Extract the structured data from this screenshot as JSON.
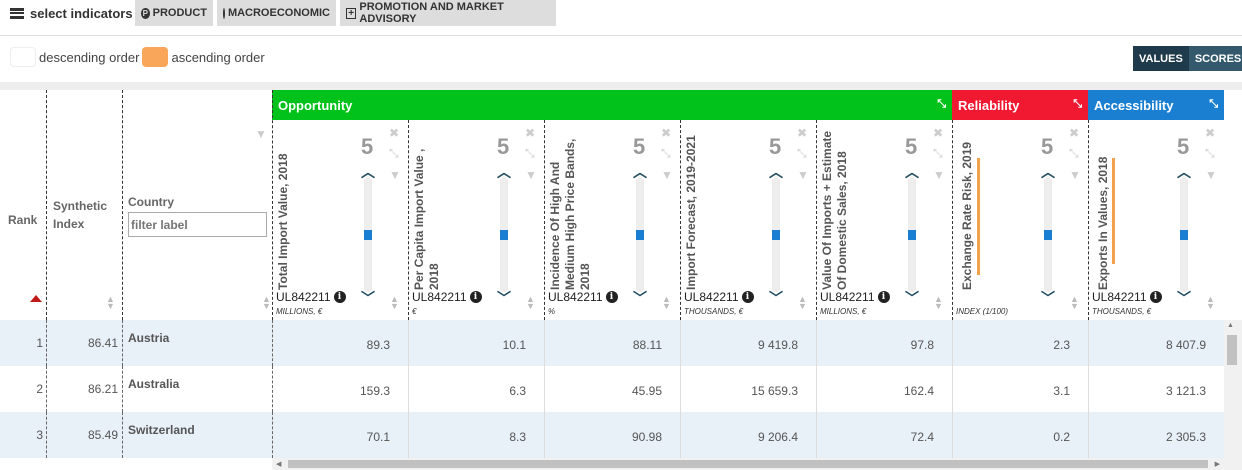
{
  "toolbar": {
    "select_label": "select indicators",
    "tabs": [
      {
        "label": "PRODUCT",
        "icon": "product-icon"
      },
      {
        "label": "MACROECONOMIC",
        "icon": "globe-icon"
      },
      {
        "label": "PROMOTION AND MARKET ADVISORY",
        "icon": "plus-square-icon"
      }
    ]
  },
  "legend": {
    "descending": "descending order",
    "ascending": "ascending order",
    "descending_color": "#ffffff",
    "ascending_color": "#f9a65a"
  },
  "view_toggle": {
    "values": "VALUES",
    "scores": "SCORES"
  },
  "groups": [
    {
      "label": "Opportunity",
      "color": "#00c21b"
    },
    {
      "label": "Reliability",
      "color": "#f01931"
    },
    {
      "label": "Accessibility",
      "color": "#1b7fd1"
    }
  ],
  "fixed_cols": {
    "rank": "Rank",
    "synthetic": "Synthetic Index",
    "country": "Country",
    "filter_placeholder": "filter label"
  },
  "indicators": [
    {
      "title": "Total Import Value, 2018",
      "code": "UL842211",
      "unit": "MILLIONS, €",
      "weight": "5"
    },
    {
      "title": "Per Capita Import Value , 2018",
      "code": "UL842211",
      "unit": "€",
      "weight": "5"
    },
    {
      "title": "Incidence Of High And Medium High Price Bands, 2018",
      "code": "UL842211",
      "unit": "%",
      "weight": "5"
    },
    {
      "title": "Import Forecast, 2019-2021",
      "code": "UL842211",
      "unit": "THOUSANDS, €",
      "weight": "5"
    },
    {
      "title": "Value Of Imports + Estimate Of Domestic Sales, 2018",
      "code": "UL842211",
      "unit": "MILLIONS, €",
      "weight": "5"
    },
    {
      "title": "Exchange Rate Risk, 2019",
      "code": "",
      "unit": "INDEX (1/100)",
      "weight": "5"
    },
    {
      "title": "Exports In Values, 2018",
      "code": "UL842211",
      "unit": "THOUSANDS, €",
      "weight": "5"
    }
  ],
  "rows": [
    {
      "rank": "1",
      "index": "86.41",
      "country": "Austria",
      "vals": [
        "89.3",
        "10.1",
        "88.11",
        "9 419.8",
        "97.8",
        "2.3",
        "8 407.9"
      ]
    },
    {
      "rank": "2",
      "index": "86.21",
      "country": "Australia",
      "vals": [
        "159.3",
        "6.3",
        "45.95",
        "15 659.3",
        "162.4",
        "3.1",
        "3 121.3"
      ]
    },
    {
      "rank": "3",
      "index": "85.49",
      "country": "Switzerland",
      "vals": [
        "70.1",
        "8.3",
        "90.98",
        "9 206.4",
        "72.4",
        "0.2",
        "2 305.3"
      ]
    }
  ]
}
